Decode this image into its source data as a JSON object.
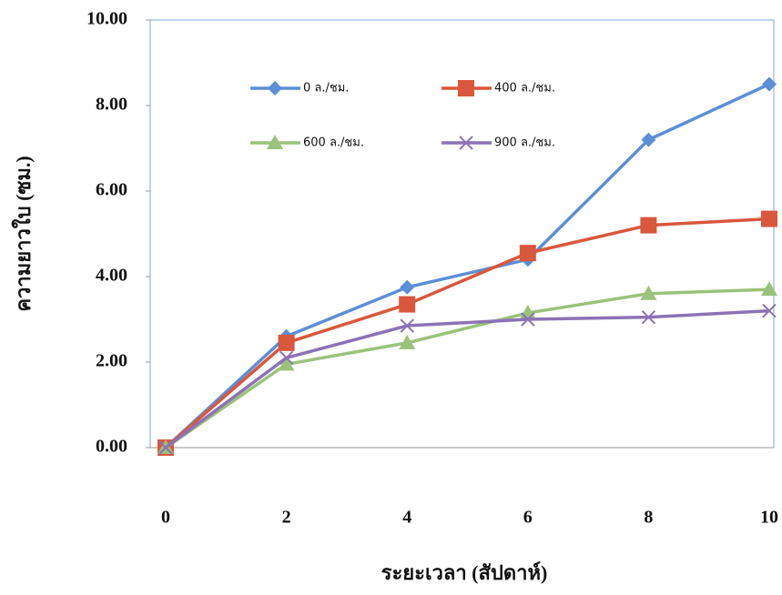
{
  "chart_data": {
    "type": "line",
    "x_label": "ระยะเวลา (สัปดาห์)",
    "y_label": "ความยาวใบ (ซม.)",
    "x": [
      0,
      2,
      4,
      6,
      8,
      10
    ],
    "xlim": [
      0,
      10
    ],
    "xticks": [
      0,
      2,
      4,
      6,
      8,
      10
    ],
    "ylim": [
      0,
      10
    ],
    "yticks": [
      {
        "value": 0,
        "label": "0.00"
      },
      {
        "value": 2,
        "label": "2.00"
      },
      {
        "value": 4,
        "label": "4.00"
      },
      {
        "value": 6,
        "label": "6.00"
      },
      {
        "value": 8,
        "label": "8.00"
      },
      {
        "value": 10,
        "label": "10.00"
      }
    ],
    "grid": false,
    "series": [
      {
        "name": "0 ล./ชม.",
        "color": "#5b8fd6",
        "marker": "diamond",
        "values": [
          0,
          2.6,
          3.75,
          4.4,
          7.2,
          8.5
        ]
      },
      {
        "name": "400 ล./ชม.",
        "color": "#d9573c",
        "marker": "square",
        "values": [
          0,
          2.45,
          3.35,
          4.55,
          5.2,
          5.35
        ]
      },
      {
        "name": "600 ล./ชม.",
        "color": "#9bc27a",
        "marker": "triangle",
        "values": [
          0,
          1.95,
          2.45,
          3.15,
          3.6,
          3.7
        ]
      },
      {
        "name": "900 ล./ชม.",
        "color": "#8c72b5",
        "marker": "x",
        "values": [
          0,
          2.1,
          2.85,
          3.0,
          3.05,
          3.2
        ]
      }
    ]
  }
}
